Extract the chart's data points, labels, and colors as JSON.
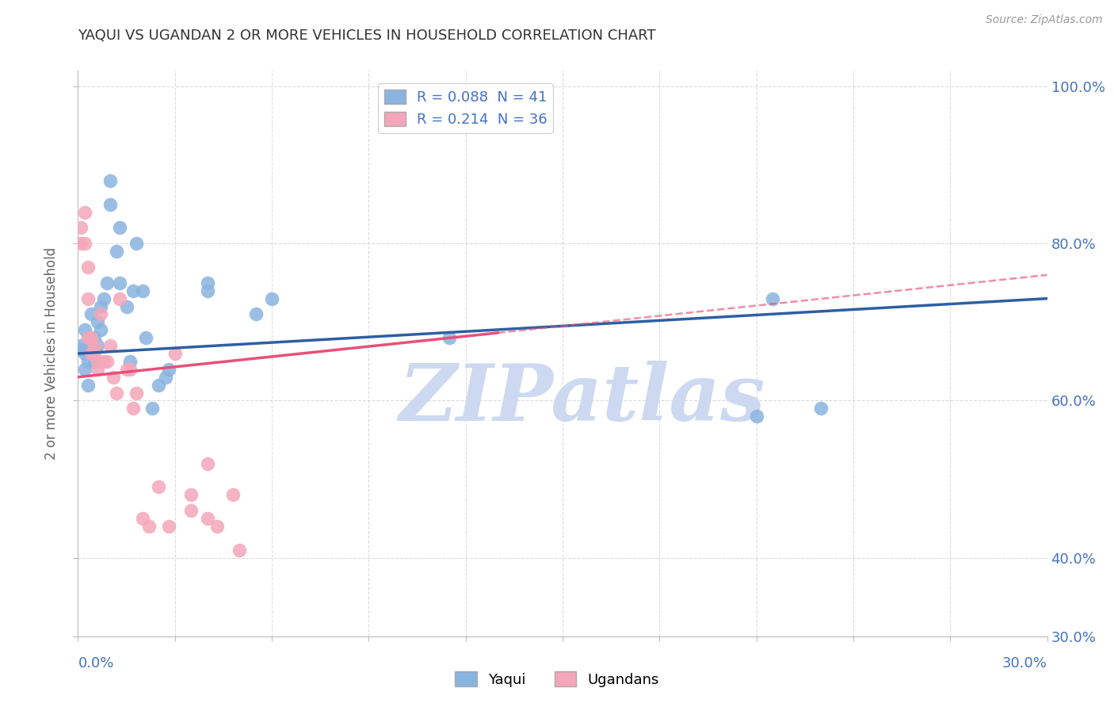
{
  "title": "YAQUI VS UGANDAN 2 OR MORE VEHICLES IN HOUSEHOLD CORRELATION CHART",
  "source": "Source: ZipAtlas.com",
  "ylabel": "2 or more Vehicles in Household",
  "xlim": [
    0.0,
    0.3
  ],
  "ylim": [
    0.3,
    1.02
  ],
  "yticks": [
    0.3,
    0.4,
    0.6,
    0.8,
    1.0
  ],
  "right_ytick_labels": [
    "30.0%",
    "40.0%",
    "60.0%",
    "80.0%",
    "100.0%"
  ],
  "legend_label1": "R = 0.088  N = 41",
  "legend_label2": "R = 0.214  N = 36",
  "watermark": "ZIPatlas",
  "scatter_blue": [
    [
      0.001,
      0.665
    ],
    [
      0.001,
      0.67
    ],
    [
      0.002,
      0.69
    ],
    [
      0.002,
      0.66
    ],
    [
      0.002,
      0.64
    ],
    [
      0.003,
      0.68
    ],
    [
      0.003,
      0.62
    ],
    [
      0.003,
      0.65
    ],
    [
      0.004,
      0.71
    ],
    [
      0.004,
      0.67
    ],
    [
      0.005,
      0.68
    ],
    [
      0.005,
      0.65
    ],
    [
      0.006,
      0.7
    ],
    [
      0.006,
      0.67
    ],
    [
      0.007,
      0.72
    ],
    [
      0.007,
      0.69
    ],
    [
      0.008,
      0.73
    ],
    [
      0.009,
      0.75
    ],
    [
      0.01,
      0.85
    ],
    [
      0.01,
      0.88
    ],
    [
      0.012,
      0.79
    ],
    [
      0.013,
      0.75
    ],
    [
      0.013,
      0.82
    ],
    [
      0.015,
      0.72
    ],
    [
      0.016,
      0.65
    ],
    [
      0.017,
      0.74
    ],
    [
      0.018,
      0.8
    ],
    [
      0.02,
      0.74
    ],
    [
      0.021,
      0.68
    ],
    [
      0.023,
      0.59
    ],
    [
      0.025,
      0.62
    ],
    [
      0.027,
      0.63
    ],
    [
      0.028,
      0.64
    ],
    [
      0.04,
      0.74
    ],
    [
      0.04,
      0.75
    ],
    [
      0.055,
      0.71
    ],
    [
      0.06,
      0.73
    ],
    [
      0.115,
      0.68
    ],
    [
      0.21,
      0.58
    ],
    [
      0.215,
      0.73
    ],
    [
      0.23,
      0.59
    ]
  ],
  "scatter_pink": [
    [
      0.001,
      0.82
    ],
    [
      0.001,
      0.8
    ],
    [
      0.002,
      0.84
    ],
    [
      0.002,
      0.8
    ],
    [
      0.003,
      0.77
    ],
    [
      0.003,
      0.73
    ],
    [
      0.003,
      0.68
    ],
    [
      0.004,
      0.68
    ],
    [
      0.004,
      0.66
    ],
    [
      0.005,
      0.67
    ],
    [
      0.005,
      0.66
    ],
    [
      0.006,
      0.64
    ],
    [
      0.006,
      0.65
    ],
    [
      0.007,
      0.71
    ],
    [
      0.008,
      0.65
    ],
    [
      0.009,
      0.65
    ],
    [
      0.01,
      0.67
    ],
    [
      0.011,
      0.63
    ],
    [
      0.012,
      0.61
    ],
    [
      0.013,
      0.73
    ],
    [
      0.015,
      0.64
    ],
    [
      0.016,
      0.64
    ],
    [
      0.017,
      0.59
    ],
    [
      0.018,
      0.61
    ],
    [
      0.02,
      0.45
    ],
    [
      0.022,
      0.44
    ],
    [
      0.025,
      0.49
    ],
    [
      0.028,
      0.44
    ],
    [
      0.03,
      0.66
    ],
    [
      0.035,
      0.46
    ],
    [
      0.035,
      0.48
    ],
    [
      0.04,
      0.52
    ],
    [
      0.04,
      0.45
    ],
    [
      0.043,
      0.44
    ],
    [
      0.048,
      0.48
    ],
    [
      0.05,
      0.41
    ]
  ],
  "blue_color": "#8ab4e0",
  "pink_color": "#f4a7b9",
  "blue_line_color": "#2e5fa3",
  "pink_line_color": "#e8507a",
  "grid_color": "#cccccc",
  "title_color": "#333333",
  "axis_label_color": "#4472c4",
  "watermark_color": "#ccd9f0",
  "background_color": "#ffffff",
  "legend_frame_color": "#c0c0c0"
}
